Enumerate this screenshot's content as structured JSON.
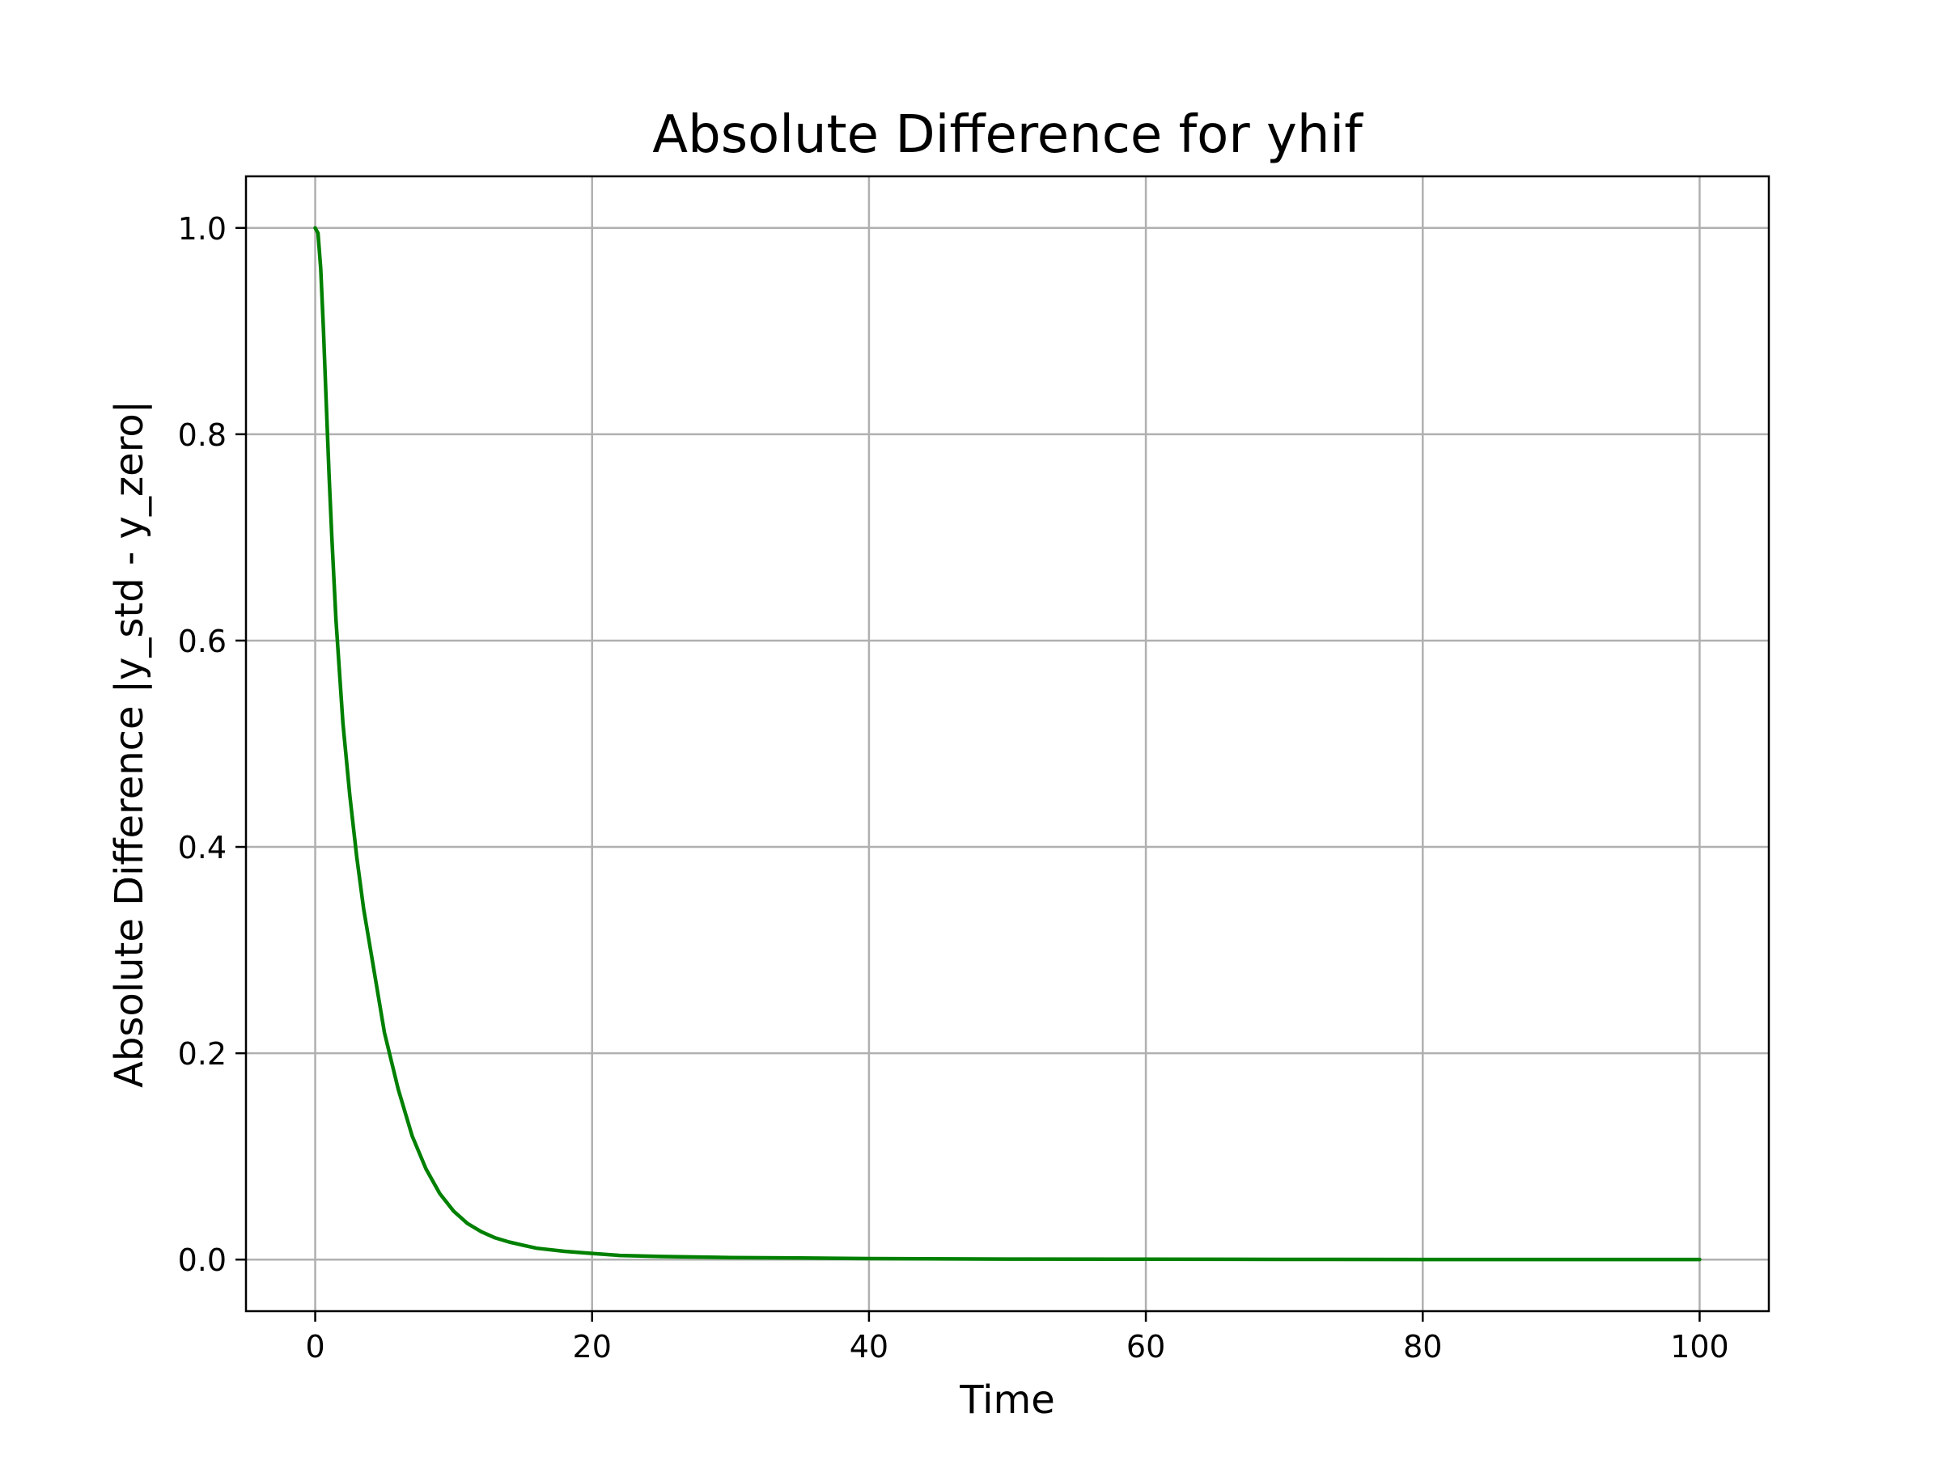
{
  "chart_data": {
    "type": "line",
    "title": "Absolute Difference for yhif",
    "xlabel": "Time",
    "ylabel": "Absolute Difference |y_std - y_zero|",
    "xlim": [
      -5,
      105
    ],
    "ylim": [
      -0.05,
      1.05
    ],
    "x_ticks": [
      0,
      20,
      40,
      60,
      80,
      100
    ],
    "x_tick_labels": [
      "0",
      "20",
      "40",
      "60",
      "80",
      "100"
    ],
    "y_ticks": [
      0.0,
      0.2,
      0.4,
      0.6,
      0.8,
      1.0
    ],
    "y_tick_labels": [
      "0.0",
      "0.2",
      "0.4",
      "0.6",
      "0.8",
      "1.0"
    ],
    "grid": true,
    "colors": {
      "line": "#008000",
      "grid": "#b0b0b0",
      "axes": "#000000"
    },
    "series": [
      {
        "x": [
          0,
          0.2,
          0.4,
          0.6,
          0.8,
          1,
          1.2,
          1.5,
          2,
          2.5,
          3,
          3.5,
          4,
          5,
          6,
          7,
          8,
          9,
          10,
          11,
          12,
          13,
          14,
          15,
          16,
          18,
          20,
          22,
          25,
          30,
          35,
          40,
          50,
          60,
          70,
          80,
          90,
          100
        ],
        "y": [
          1.0,
          0.995,
          0.96,
          0.9,
          0.83,
          0.76,
          0.7,
          0.62,
          0.52,
          0.45,
          0.39,
          0.34,
          0.3,
          0.22,
          0.165,
          0.12,
          0.088,
          0.064,
          0.047,
          0.035,
          0.027,
          0.021,
          0.017,
          0.014,
          0.011,
          0.008,
          0.006,
          0.004,
          0.003,
          0.002,
          0.0015,
          0.001,
          0.0005,
          0.0003,
          0.0002,
          0.0001,
          0.0001,
          0.0001
        ]
      }
    ]
  }
}
